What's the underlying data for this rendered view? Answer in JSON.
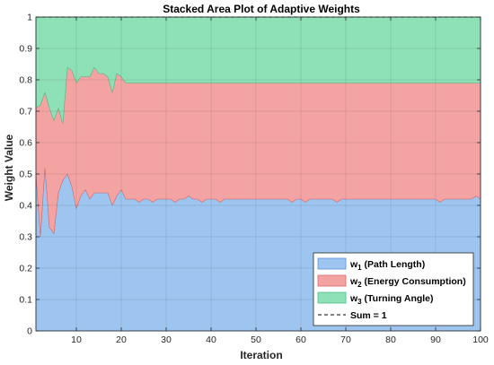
{
  "chart_data": {
    "type": "area",
    "title": "Stacked Area Plot of Adaptive Weights",
    "xlabel": "Iteration",
    "ylabel": "Weight Value",
    "xlim": [
      1,
      100
    ],
    "ylim": [
      0,
      1
    ],
    "xticks": [
      10,
      20,
      30,
      40,
      50,
      60,
      70,
      80,
      90,
      100
    ],
    "yticks": [
      0,
      0.1,
      0.2,
      0.3,
      0.4,
      0.5,
      0.6,
      0.7,
      0.8,
      0.9,
      1
    ],
    "ytick_labels": [
      "0",
      "0.1",
      "0.2",
      "0.3",
      "0.4",
      "0.5",
      "0.6",
      "0.7",
      "0.8",
      "0.9",
      "1"
    ],
    "grid": true,
    "legend_position": "bottom-right",
    "stacked": true,
    "x": [
      1,
      2,
      3,
      4,
      5,
      6,
      7,
      8,
      9,
      10,
      11,
      12,
      13,
      14,
      15,
      16,
      17,
      18,
      19,
      20,
      21,
      22,
      23,
      24,
      25,
      26,
      27,
      28,
      29,
      30,
      31,
      32,
      33,
      34,
      35,
      36,
      37,
      38,
      39,
      40,
      41,
      42,
      43,
      44,
      45,
      46,
      47,
      48,
      49,
      50,
      51,
      52,
      53,
      54,
      55,
      56,
      57,
      58,
      59,
      60,
      61,
      62,
      63,
      64,
      65,
      66,
      67,
      68,
      69,
      70,
      71,
      72,
      73,
      74,
      75,
      76,
      77,
      78,
      79,
      80,
      81,
      82,
      83,
      84,
      85,
      86,
      87,
      88,
      89,
      90,
      91,
      92,
      93,
      94,
      95,
      96,
      97,
      98,
      99,
      100
    ],
    "series": [
      {
        "name": "w_1 (Path Length)",
        "label_main": "w",
        "label_sub": "1",
        "label_rest": " (Path Length)",
        "color": "#9ec5f0",
        "edge": "#5b8fd6",
        "values": [
          0.5,
          0.3,
          0.52,
          0.33,
          0.31,
          0.44,
          0.48,
          0.5,
          0.46,
          0.39,
          0.43,
          0.45,
          0.42,
          0.44,
          0.44,
          0.44,
          0.44,
          0.4,
          0.43,
          0.45,
          0.42,
          0.42,
          0.42,
          0.41,
          0.42,
          0.42,
          0.41,
          0.42,
          0.42,
          0.42,
          0.42,
          0.41,
          0.42,
          0.42,
          0.43,
          0.42,
          0.42,
          0.41,
          0.42,
          0.42,
          0.42,
          0.41,
          0.42,
          0.42,
          0.42,
          0.42,
          0.42,
          0.42,
          0.42,
          0.42,
          0.42,
          0.42,
          0.42,
          0.42,
          0.42,
          0.42,
          0.42,
          0.41,
          0.42,
          0.42,
          0.41,
          0.42,
          0.42,
          0.42,
          0.42,
          0.42,
          0.42,
          0.41,
          0.42,
          0.42,
          0.42,
          0.42,
          0.42,
          0.42,
          0.42,
          0.42,
          0.42,
          0.42,
          0.42,
          0.42,
          0.42,
          0.42,
          0.42,
          0.42,
          0.42,
          0.42,
          0.42,
          0.42,
          0.42,
          0.42,
          0.41,
          0.42,
          0.42,
          0.42,
          0.42,
          0.42,
          0.42,
          0.42,
          0.43,
          0.42
        ]
      },
      {
        "name": "w_2 (Energy Consumption)",
        "label_main": "w",
        "label_sub": "2",
        "label_rest": " (Energy Consumption)",
        "color": "#f4a3a3",
        "edge": "#d86a6a",
        "values": [
          0.21,
          0.42,
          0.24,
          0.38,
          0.36,
          0.27,
          0.18,
          0.34,
          0.37,
          0.4,
          0.38,
          0.36,
          0.39,
          0.4,
          0.38,
          0.38,
          0.37,
          0.36,
          0.39,
          0.36,
          0.37,
          0.37,
          0.37,
          0.38,
          0.37,
          0.37,
          0.38,
          0.37,
          0.37,
          0.37,
          0.37,
          0.38,
          0.37,
          0.37,
          0.36,
          0.37,
          0.37,
          0.38,
          0.37,
          0.37,
          0.37,
          0.38,
          0.37,
          0.37,
          0.37,
          0.37,
          0.37,
          0.37,
          0.37,
          0.37,
          0.37,
          0.37,
          0.37,
          0.37,
          0.37,
          0.37,
          0.37,
          0.38,
          0.37,
          0.37,
          0.38,
          0.37,
          0.37,
          0.37,
          0.37,
          0.37,
          0.37,
          0.38,
          0.37,
          0.37,
          0.37,
          0.37,
          0.37,
          0.37,
          0.37,
          0.37,
          0.37,
          0.37,
          0.37,
          0.37,
          0.37,
          0.37,
          0.37,
          0.37,
          0.37,
          0.37,
          0.37,
          0.37,
          0.37,
          0.37,
          0.38,
          0.37,
          0.37,
          0.37,
          0.37,
          0.37,
          0.37,
          0.37,
          0.36,
          0.37
        ]
      },
      {
        "name": "w_3 (Turning Angle)",
        "label_main": "w",
        "label_sub": "3",
        "label_rest": " (Turning Angle)",
        "color": "#8ee0b7",
        "edge": "#4fbf8a",
        "values": [
          0.29,
          0.28,
          0.24,
          0.29,
          0.33,
          0.29,
          0.34,
          0.16,
          0.17,
          0.21,
          0.19,
          0.19,
          0.19,
          0.16,
          0.18,
          0.18,
          0.19,
          0.24,
          0.18,
          0.19,
          0.21,
          0.21,
          0.21,
          0.21,
          0.21,
          0.21,
          0.21,
          0.21,
          0.21,
          0.21,
          0.21,
          0.21,
          0.21,
          0.21,
          0.21,
          0.21,
          0.21,
          0.21,
          0.21,
          0.21,
          0.21,
          0.21,
          0.21,
          0.21,
          0.21,
          0.21,
          0.21,
          0.21,
          0.21,
          0.21,
          0.21,
          0.21,
          0.21,
          0.21,
          0.21,
          0.21,
          0.21,
          0.21,
          0.21,
          0.21,
          0.21,
          0.21,
          0.21,
          0.21,
          0.21,
          0.21,
          0.21,
          0.21,
          0.21,
          0.21,
          0.21,
          0.21,
          0.21,
          0.21,
          0.21,
          0.21,
          0.21,
          0.21,
          0.21,
          0.21,
          0.21,
          0.21,
          0.21,
          0.21,
          0.21,
          0.21,
          0.21,
          0.21,
          0.21,
          0.21,
          0.21,
          0.21,
          0.21,
          0.21,
          0.21,
          0.21,
          0.21,
          0.21,
          0.21,
          0.21
        ]
      }
    ],
    "reference_line": {
      "name": "Sum = 1",
      "y": 1,
      "style": "dashed",
      "color": "#000000"
    }
  }
}
